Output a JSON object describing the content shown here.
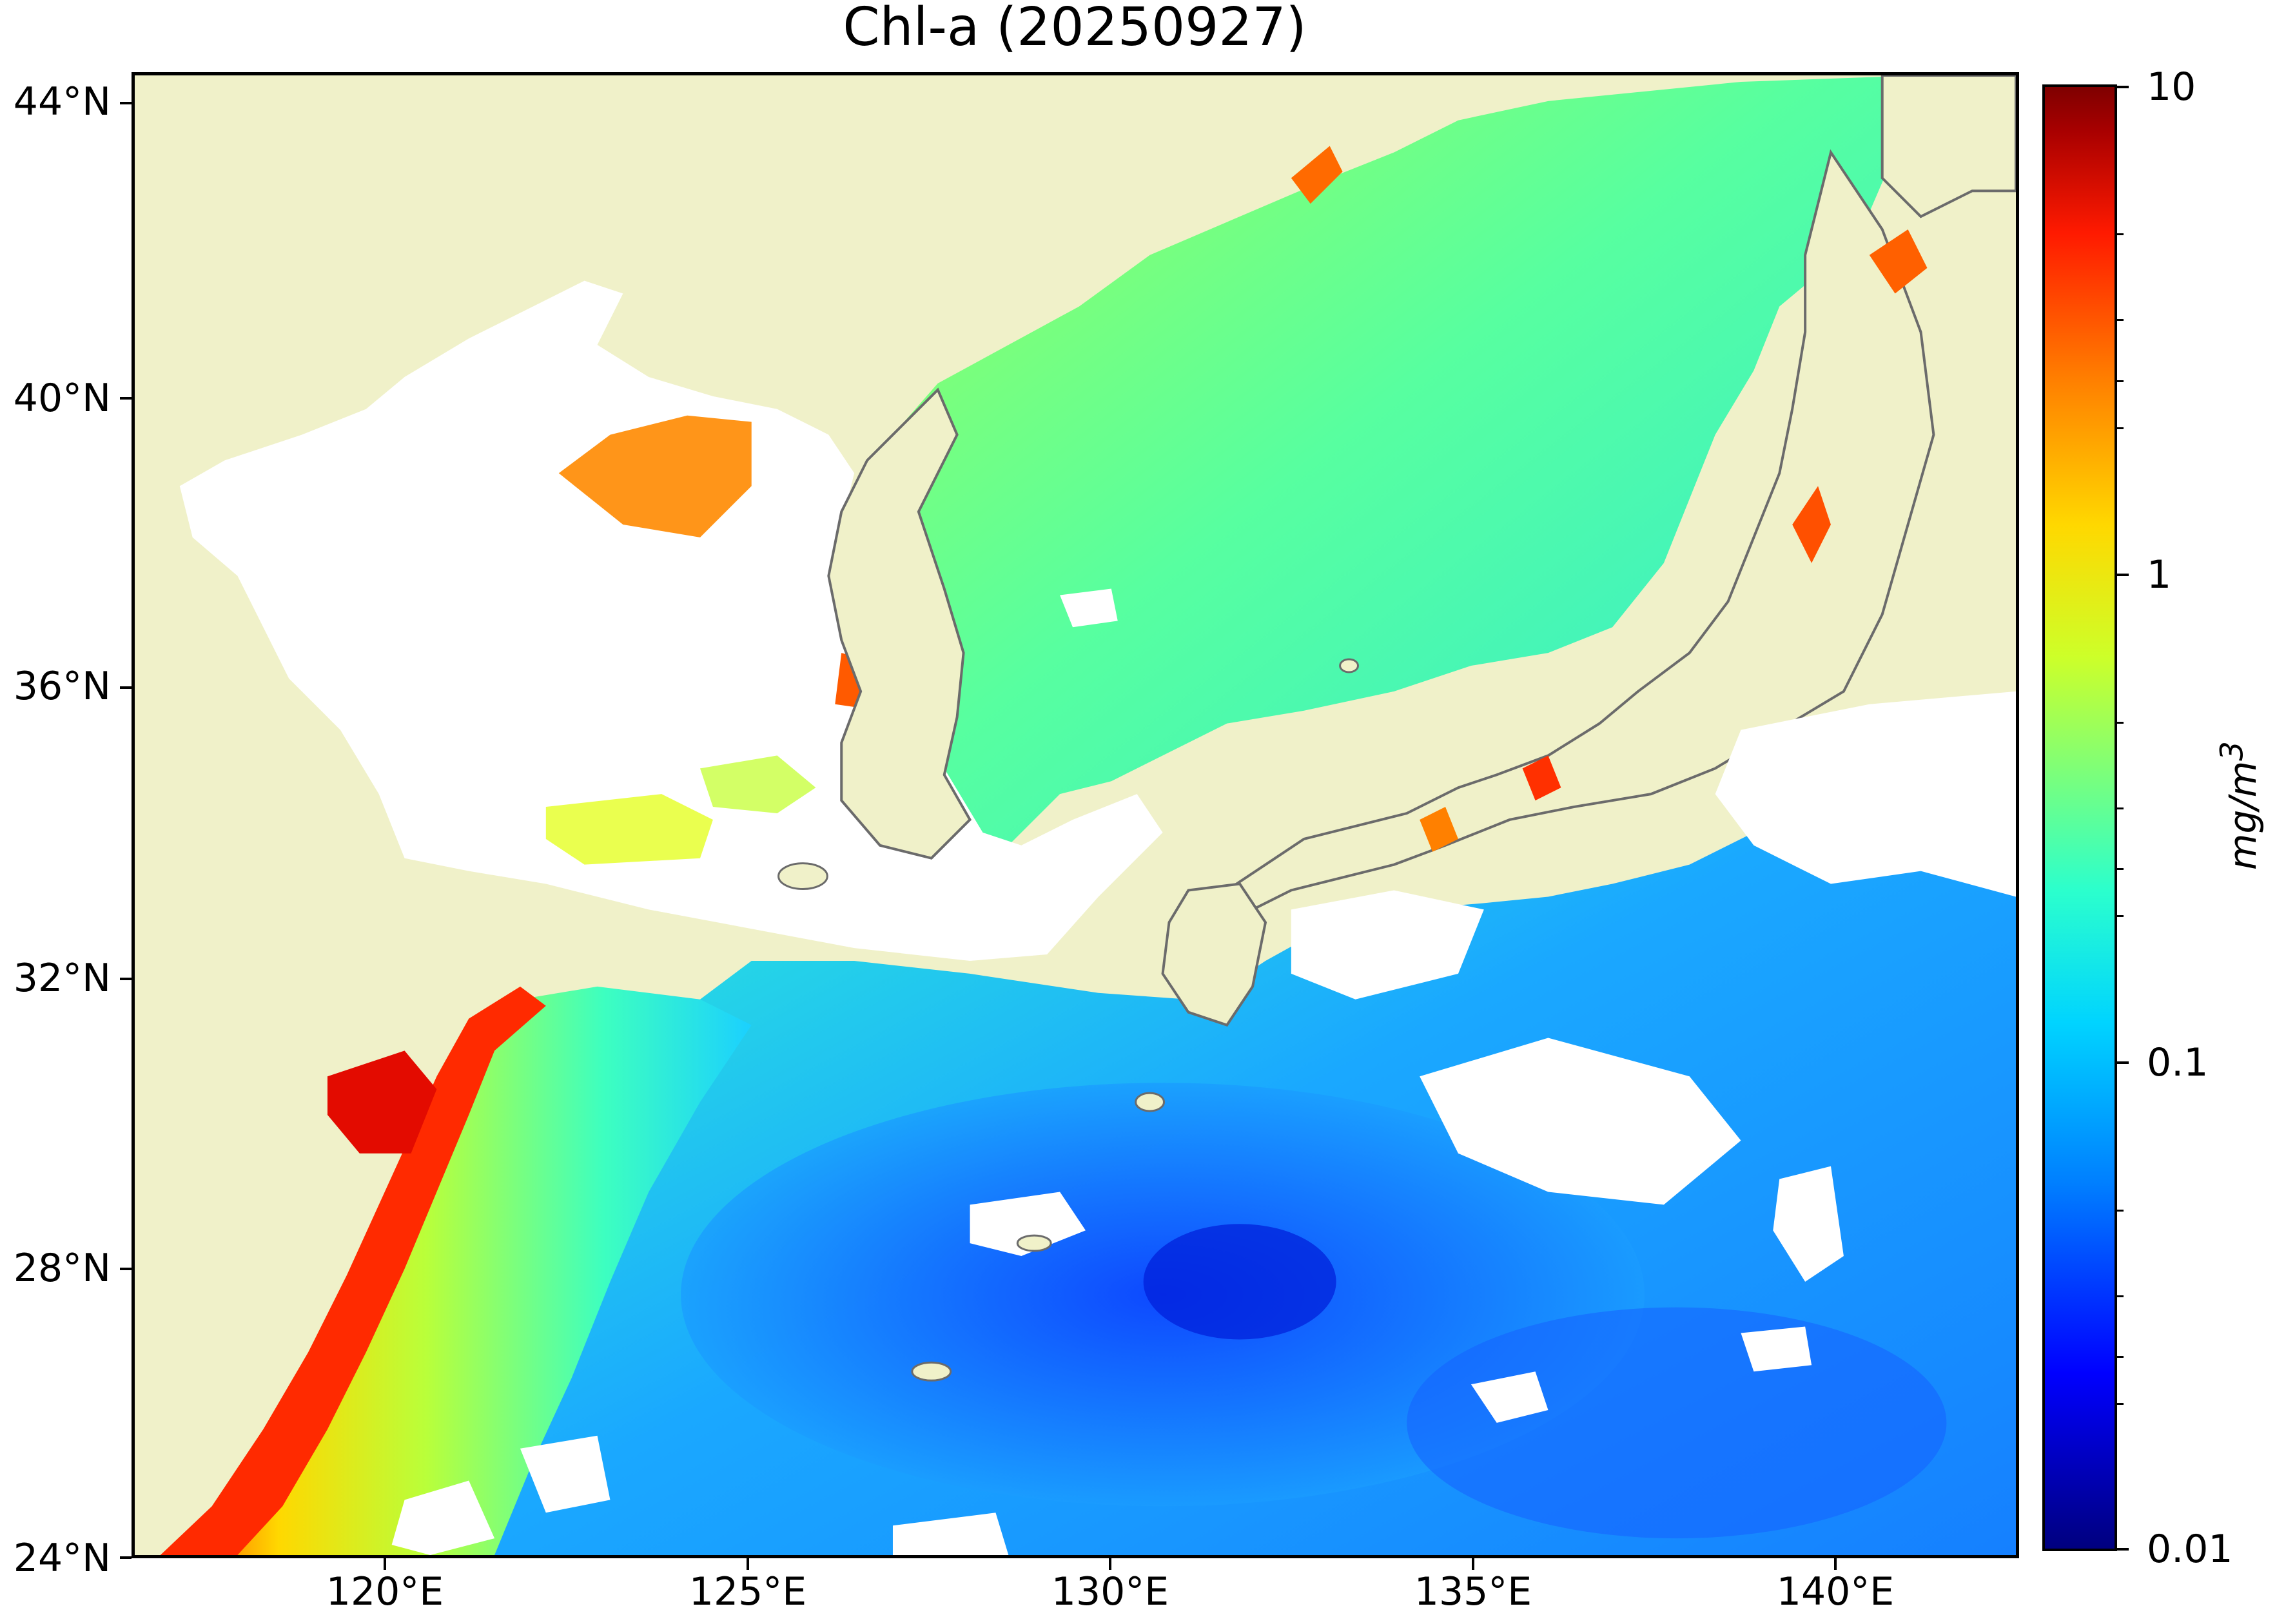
{
  "title": "Chl-a (20250927)",
  "lat_labels": [
    "44°N",
    "40°N",
    "36°N",
    "32°N",
    "28°N",
    "24°N"
  ],
  "lon_labels": [
    "120°E",
    "125°E",
    "130°E",
    "135°E",
    "140°E"
  ],
  "colorbar": {
    "labels": [
      "10",
      "1",
      "0.1",
      "0.01"
    ],
    "unit": "mg/m3",
    "scale": "log",
    "range": [
      0.01,
      10
    ],
    "colormap": "jet"
  },
  "colors": {
    "land": "#f0f1c9",
    "no_data": "#ffffff",
    "coastline": "#6b6b6b"
  },
  "chart_data": {
    "type": "heatmap",
    "title": "Chl-a (20250927)",
    "lon_range": [
      117,
      143
    ],
    "lat_range": [
      24,
      44.5
    ],
    "lon_ticks": [
      120,
      125,
      130,
      135,
      140
    ],
    "lat_ticks": [
      24,
      28,
      32,
      36,
      40,
      44
    ]
  }
}
